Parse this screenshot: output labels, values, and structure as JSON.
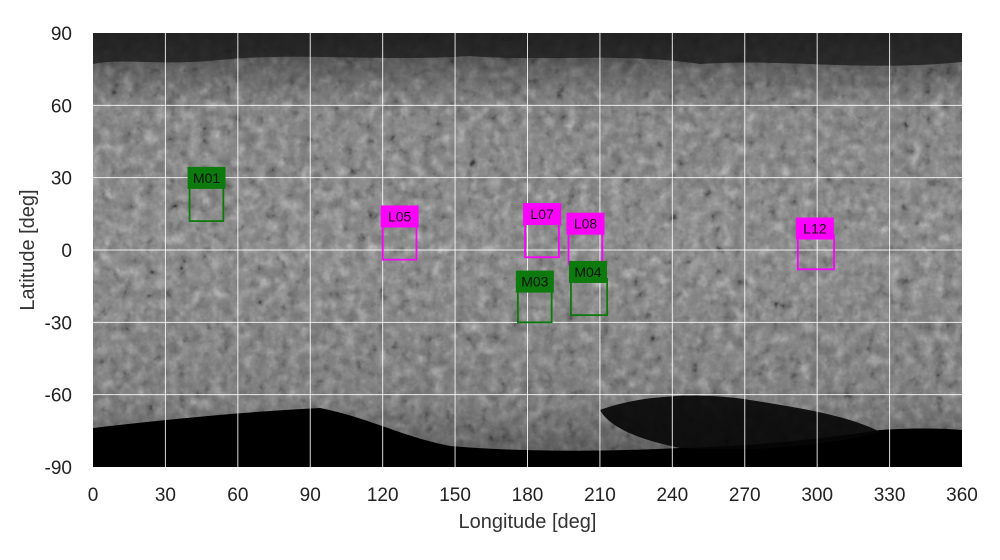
{
  "chart_data": {
    "type": "scatter",
    "title": "",
    "xlabel": "Longitude [deg]",
    "ylabel": "Latitude [deg]",
    "xlim": [
      0,
      360
    ],
    "ylim": [
      -90,
      90
    ],
    "xticks": [
      0,
      30,
      60,
      90,
      120,
      150,
      180,
      210,
      240,
      270,
      300,
      330,
      360
    ],
    "yticks": [
      -90,
      -60,
      -30,
      0,
      30,
      60,
      90
    ],
    "grid": true,
    "background": "grayscale asteroid surface map (equirectangular projection)",
    "sites": [
      {
        "label": "M01",
        "lon_min": 40,
        "lon_max": 54,
        "lat_min": 12,
        "lat_max": 27,
        "group": "M"
      },
      {
        "label": "L05",
        "lon_min": 120,
        "lon_max": 134,
        "lat_min": -4,
        "lat_max": 11,
        "group": "L"
      },
      {
        "label": "L07",
        "lon_min": 179,
        "lon_max": 193,
        "lat_min": -3,
        "lat_max": 12,
        "group": "L"
      },
      {
        "label": "L08",
        "lon_min": 197,
        "lon_max": 211,
        "lat_min": -6,
        "lat_max": 8,
        "group": "L"
      },
      {
        "label": "M03",
        "lon_min": 176,
        "lon_max": 190,
        "lat_min": -30,
        "lat_max": -16,
        "group": "M"
      },
      {
        "label": "M04",
        "lon_min": 198,
        "lon_max": 213,
        "lat_min": -27,
        "lat_max": -12,
        "group": "M"
      },
      {
        "label": "L12",
        "lon_min": 292,
        "lon_max": 307,
        "lat_min": -8,
        "lat_max": 6,
        "group": "L"
      }
    ],
    "colors": {
      "M": "#0c7a0c",
      "L": "#ff00ff"
    }
  }
}
